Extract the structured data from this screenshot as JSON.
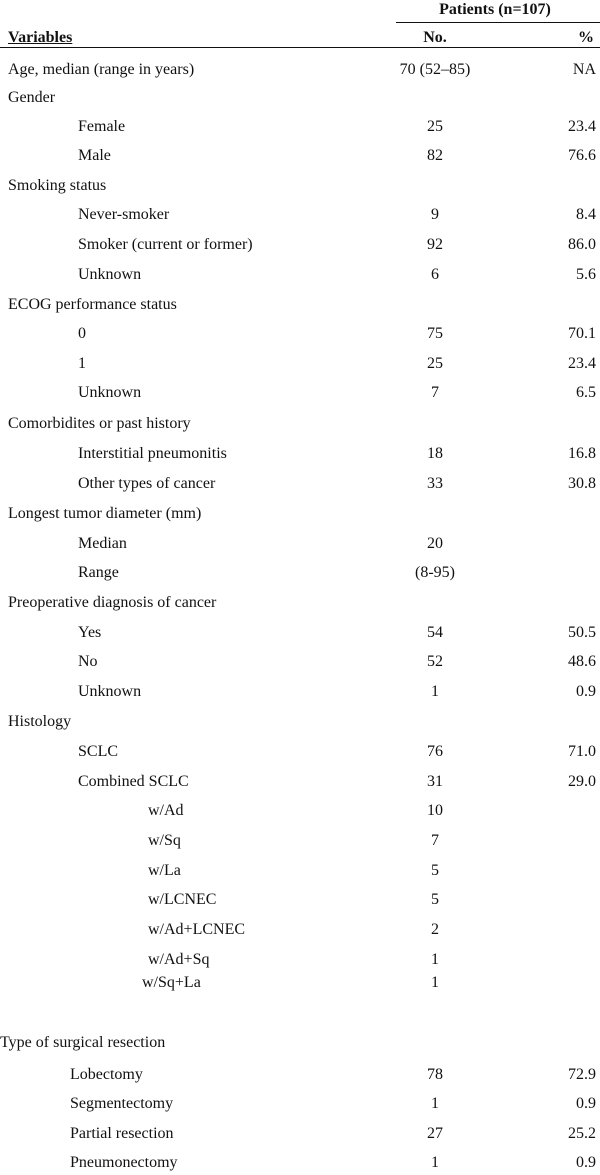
{
  "table": {
    "group_header": "Patients (n=107)",
    "columns": [
      "Variables",
      "No.",
      "%"
    ],
    "rows": [
      {
        "label": "Age, median (range in years)",
        "no": "70 (52–85)",
        "pct": "NA"
      },
      {
        "label": "Gender"
      },
      {
        "label": "Female",
        "no": "25",
        "pct": "23.4"
      },
      {
        "label": "Male",
        "no": "82",
        "pct": "76.6"
      },
      {
        "label": "Smoking status"
      },
      {
        "label": "Never-smoker",
        "no": "9",
        "pct": "8.4"
      },
      {
        "label": "Smoker (current or former)",
        "no": "92",
        "pct": "86.0"
      },
      {
        "label": "Unknown",
        "no": "6",
        "pct": "5.6"
      },
      {
        "label": "ECOG performance status"
      },
      {
        "label": "0",
        "no": "75",
        "pct": "70.1"
      },
      {
        "label": "1",
        "no": "25",
        "pct": "23.4"
      },
      {
        "label": "Unknown",
        "no": "7",
        "pct": "6.5"
      },
      {
        "label": "Comorbidites or past history"
      },
      {
        "label": "Interstitial pneumonitis",
        "no": "18",
        "pct": "16.8"
      },
      {
        "label": "Other types of cancer",
        "no": "33",
        "pct": "30.8"
      },
      {
        "label": "Longest tumor diameter (mm)"
      },
      {
        "label": "Median",
        "no": "20"
      },
      {
        "label": "Range",
        "no": "(8-95)"
      },
      {
        "label": "Preoperative diagnosis of cancer"
      },
      {
        "label": "Yes",
        "no": "54",
        "pct": "50.5"
      },
      {
        "label": "No",
        "no": "52",
        "pct": "48.6"
      },
      {
        "label": "Unknown",
        "no": "1",
        "pct": "0.9"
      },
      {
        "label": "Histology"
      },
      {
        "label": "SCLC",
        "no": "76",
        "pct": "71.0"
      },
      {
        "label": "Combined SCLC",
        "no": "31",
        "pct": "29.0"
      },
      {
        "label": "w/Ad",
        "no": "10"
      },
      {
        "label": "w/Sq",
        "no": "7"
      },
      {
        "label": "w/La",
        "no": "5"
      },
      {
        "label": "w/LCNEC",
        "no": "5"
      },
      {
        "label": "w/Ad+LCNEC",
        "no": "2"
      },
      {
        "label": "w/Ad+Sq",
        "no": "1"
      },
      {
        "label": "w/Sq+La",
        "no": "1"
      },
      {
        "label": "Type of surgical resection"
      },
      {
        "label": "Lobectomy",
        "no": "78",
        "pct": "72.9"
      },
      {
        "label": "Segmentectomy",
        "no": "1",
        "pct": "0.9"
      },
      {
        "label": "Partial resection",
        "no": "27",
        "pct": "25.2"
      },
      {
        "label": "Pneumonectomy",
        "no": "1",
        "pct": "0.9"
      }
    ]
  }
}
